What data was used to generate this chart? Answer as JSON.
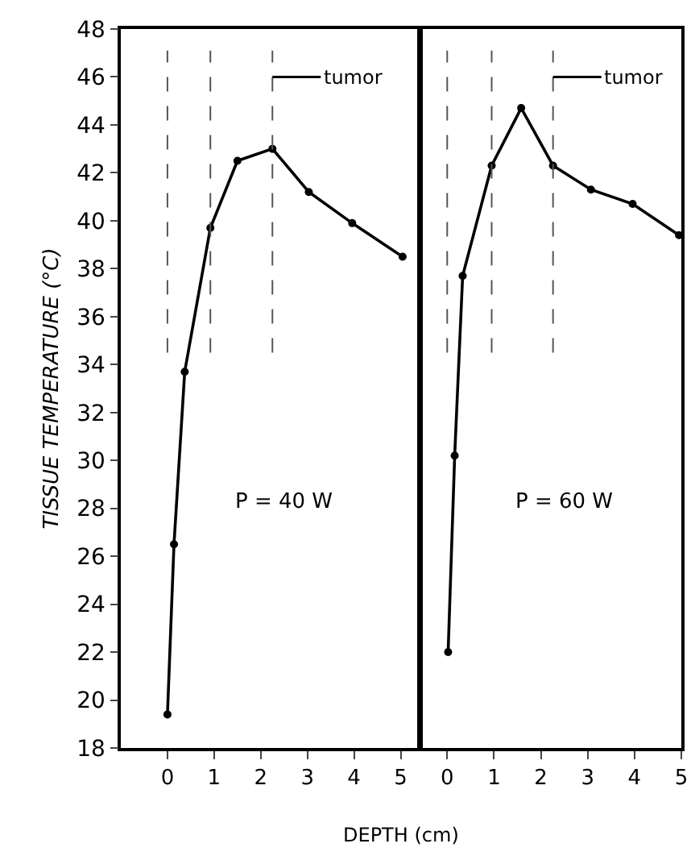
{
  "chart_data": [
    {
      "type": "line",
      "xlabel": "DEPTH (cm)",
      "ylabel": "TISSUE TEMPERATURE (°C)",
      "x": [
        0,
        0.14,
        0.37,
        0.92,
        1.5,
        2.25,
        3.03,
        3.96,
        5.04
      ],
      "series": [
        {
          "color": "#000000",
          "values": [
            19.4,
            26.5,
            33.7,
            39.7,
            42.5,
            43.0,
            41.2,
            39.9,
            38.5
          ]
        }
      ],
      "xlim": [
        -1,
        5.4
      ],
      "xticks": [
        0,
        1,
        2,
        3,
        4,
        5
      ],
      "ylim": [
        18,
        48
      ],
      "yticks": [
        18,
        20,
        22,
        24,
        26,
        28,
        30,
        32,
        34,
        36,
        38,
        40,
        42,
        44,
        46,
        48
      ],
      "marker": "circle",
      "line_style": "solid",
      "grid": false,
      "annotations": [
        "P = 40 W",
        {
          "text": "tumor",
          "x": 2.25,
          "y": 46
        }
      ],
      "ref_lines": [
        {
          "axis": "x",
          "value": 0,
          "line_style": "dashed"
        },
        {
          "axis": "x",
          "value": 0.92,
          "line_style": "dashed"
        },
        {
          "axis": "x",
          "value": 2.25,
          "line_style": "dashed"
        }
      ]
    },
    {
      "type": "line",
      "x": [
        0.02,
        0.16,
        0.33,
        0.95,
        1.58,
        2.26,
        3.07,
        3.96,
        4.95
      ],
      "series": [
        {
          "color": "#000000",
          "values": [
            22.0,
            30.2,
            37.7,
            42.3,
            44.7,
            42.3,
            41.3,
            40.7,
            39.4
          ]
        }
      ],
      "xlim": [
        -0.57,
        5
      ],
      "xticks": [
        0,
        1,
        2,
        3,
        4,
        5
      ],
      "ylim": [
        18,
        48
      ],
      "yticks": [
        18,
        20,
        22,
        24,
        26,
        28,
        30,
        32,
        34,
        36,
        38,
        40,
        42,
        44,
        46,
        48
      ],
      "tick_labels": "x",
      "marker": "circle",
      "line_style": "solid",
      "grid": false,
      "annotations": [
        "P = 60 W",
        {
          "text": "tumor",
          "x": 2.26,
          "y": 46
        }
      ],
      "ref_lines": [
        {
          "axis": "x",
          "value": 0,
          "line_style": "dashed"
        },
        {
          "axis": "x",
          "value": 0.95,
          "line_style": "dashed"
        },
        {
          "axis": "x",
          "value": 2.26,
          "line_style": "dashed"
        }
      ]
    }
  ]
}
